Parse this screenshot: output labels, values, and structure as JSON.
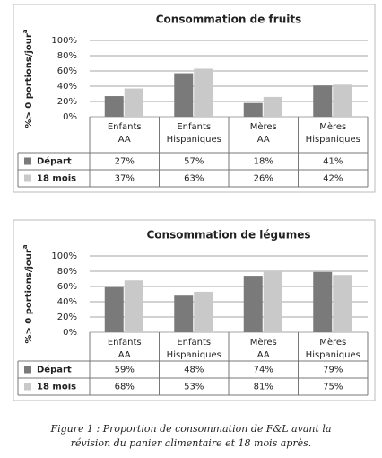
{
  "chart_data": [
    {
      "type": "bar",
      "title": "Consommation de fruits",
      "y_label": "%> 0 portions/jour",
      "y_label_sup": "a",
      "categories": [
        [
          "Enfants",
          "AA"
        ],
        [
          "Enfants",
          "Hispaniques"
        ],
        [
          "Mères",
          "AA"
        ],
        [
          "Mères",
          "Hispaniques"
        ]
      ],
      "series": [
        {
          "name": "Départ",
          "color": "#7a7a7a",
          "values": [
            27,
            57,
            18,
            41
          ],
          "value_labels": [
            "27%",
            "57%",
            "18%",
            "41%"
          ]
        },
        {
          "name": "18 mois",
          "color": "#c9c9c9",
          "values": [
            37,
            63,
            26,
            42
          ],
          "value_labels": [
            "37%",
            "63%",
            "26%",
            "42%"
          ]
        }
      ],
      "ylim": [
        0,
        100
      ],
      "yticks": [
        {
          "value": 0,
          "label": "0%"
        },
        {
          "value": 20,
          "label": "20%"
        },
        {
          "value": 40,
          "label": "40%"
        },
        {
          "value": 60,
          "label": "60%"
        },
        {
          "value": 80,
          "label": "80%"
        },
        {
          "value": 100,
          "label": "100%"
        }
      ],
      "grid": true
    },
    {
      "type": "bar",
      "title": "Consommation de légumes",
      "y_label": "%> 0 portions/jour",
      "y_label_sup": "a",
      "categories": [
        [
          "Enfants",
          "AA"
        ],
        [
          "Enfants",
          "Hispaniques"
        ],
        [
          "Mères",
          "AA"
        ],
        [
          "Mères",
          "Hispaniques"
        ]
      ],
      "series": [
        {
          "name": "Départ",
          "color": "#7a7a7a",
          "values": [
            59,
            48,
            74,
            79
          ],
          "value_labels": [
            "59%",
            "48%",
            "74%",
            "79%"
          ]
        },
        {
          "name": "18 mois",
          "color": "#c9c9c9",
          "values": [
            68,
            53,
            81,
            75
          ],
          "value_labels": [
            "68%",
            "53%",
            "81%",
            "75%"
          ]
        }
      ],
      "ylim": [
        0,
        100
      ],
      "yticks": [
        {
          "value": 0,
          "label": "0%"
        },
        {
          "value": 20,
          "label": "20%"
        },
        {
          "value": 40,
          "label": "40%"
        },
        {
          "value": 60,
          "label": "60%"
        },
        {
          "value": 80,
          "label": "80%"
        },
        {
          "value": 100,
          "label": "100%"
        }
      ],
      "grid": true
    }
  ],
  "caption": [
    "Figure 1 : Proportion de consommation de F&L avant la",
    "révision du panier alimentaire et 18 mois après."
  ]
}
